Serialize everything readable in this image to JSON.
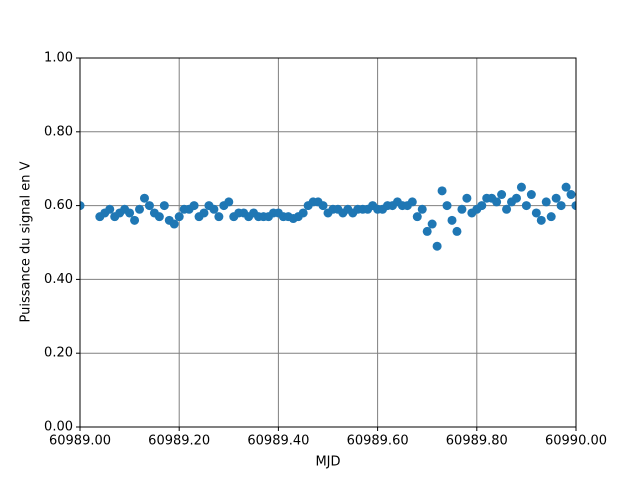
{
  "chart_data": {
    "type": "scatter",
    "x_label": "MJD",
    "y_label": "Puissance du signal en V",
    "color": "#1f77b4",
    "grid": true,
    "xlim": [
      60989,
      60990
    ],
    "ylim": [
      0,
      1
    ],
    "xticks": [
      {
        "value": 60989,
        "label": "60989.00"
      },
      {
        "value": 60989.2,
        "label": "60989.20"
      },
      {
        "value": 60989.4,
        "label": "60989.40"
      },
      {
        "value": 60989.6,
        "label": "60989.60"
      },
      {
        "value": 60989.8,
        "label": "60989.80"
      },
      {
        "value": 60990,
        "label": "60990.00"
      }
    ],
    "yticks": [
      {
        "value": 0,
        "label": "0.00"
      },
      {
        "value": 0.2,
        "label": "0.20"
      },
      {
        "value": 0.4,
        "label": "0.40"
      },
      {
        "value": 0.6,
        "label": "0.60"
      },
      {
        "value": 0.8,
        "label": "0.80"
      },
      {
        "value": 1,
        "label": "1.00"
      }
    ],
    "x": [
      60989,
      60989.04,
      60989.05,
      60989.06,
      60989.07,
      60989.08,
      60989.09,
      60989.1,
      60989.11,
      60989.12,
      60989.13,
      60989.14,
      60989.15,
      60989.16,
      60989.17,
      60989.18,
      60989.19,
      60989.2,
      60989.21,
      60989.22,
      60989.23,
      60989.24,
      60989.25,
      60989.26,
      60989.27,
      60989.28,
      60989.29,
      60989.3,
      60989.31,
      60989.32,
      60989.33,
      60989.34,
      60989.35,
      60989.36,
      60989.37,
      60989.38,
      60989.39,
      60989.4,
      60989.41,
      60989.42,
      60989.43,
      60989.44,
      60989.45,
      60989.46,
      60989.47,
      60989.48,
      60989.49,
      60989.5,
      60989.51,
      60989.52,
      60989.53,
      60989.54,
      60989.55,
      60989.56,
      60989.57,
      60989.58,
      60989.59,
      60989.6,
      60989.61,
      60989.62,
      60989.63,
      60989.64,
      60989.65,
      60989.66,
      60989.67,
      60989.68,
      60989.69,
      60989.7,
      60989.71,
      60989.72,
      60989.73,
      60989.74,
      60989.75,
      60989.76,
      60989.77,
      60989.78,
      60989.79,
      60989.8,
      60989.81,
      60989.82,
      60989.83,
      60989.84,
      60989.85,
      60989.86,
      60989.87,
      60989.88,
      60989.89,
      60989.9,
      60989.91,
      60989.92,
      60989.93,
      60989.94,
      60989.95,
      60989.96,
      60989.97,
      60989.98,
      60989.99,
      60990
    ],
    "values": [
      0.6,
      0.57,
      0.58,
      0.59,
      0.57,
      0.58,
      0.59,
      0.58,
      0.56,
      0.59,
      0.62,
      0.6,
      0.58,
      0.57,
      0.6,
      0.56,
      0.55,
      0.57,
      0.59,
      0.59,
      0.6,
      0.57,
      0.58,
      0.6,
      0.59,
      0.57,
      0.6,
      0.61,
      0.57,
      0.58,
      0.58,
      0.57,
      0.58,
      0.57,
      0.57,
      0.57,
      0.58,
      0.58,
      0.57,
      0.57,
      0.565,
      0.57,
      0.58,
      0.6,
      0.61,
      0.61,
      0.6,
      0.58,
      0.59,
      0.59,
      0.58,
      0.59,
      0.58,
      0.59,
      0.59,
      0.59,
      0.6,
      0.59,
      0.59,
      0.6,
      0.6,
      0.61,
      0.6,
      0.6,
      0.61,
      0.57,
      0.59,
      0.53,
      0.55,
      0.49,
      0.64,
      0.6,
      0.56,
      0.53,
      0.59,
      0.62,
      0.58,
      0.59,
      0.6,
      0.62,
      0.62,
      0.61,
      0.63,
      0.59,
      0.61,
      0.62,
      0.65,
      0.6,
      0.63,
      0.58,
      0.56,
      0.61,
      0.57,
      0.62,
      0.6,
      0.65,
      0.63,
      0.6
    ]
  }
}
